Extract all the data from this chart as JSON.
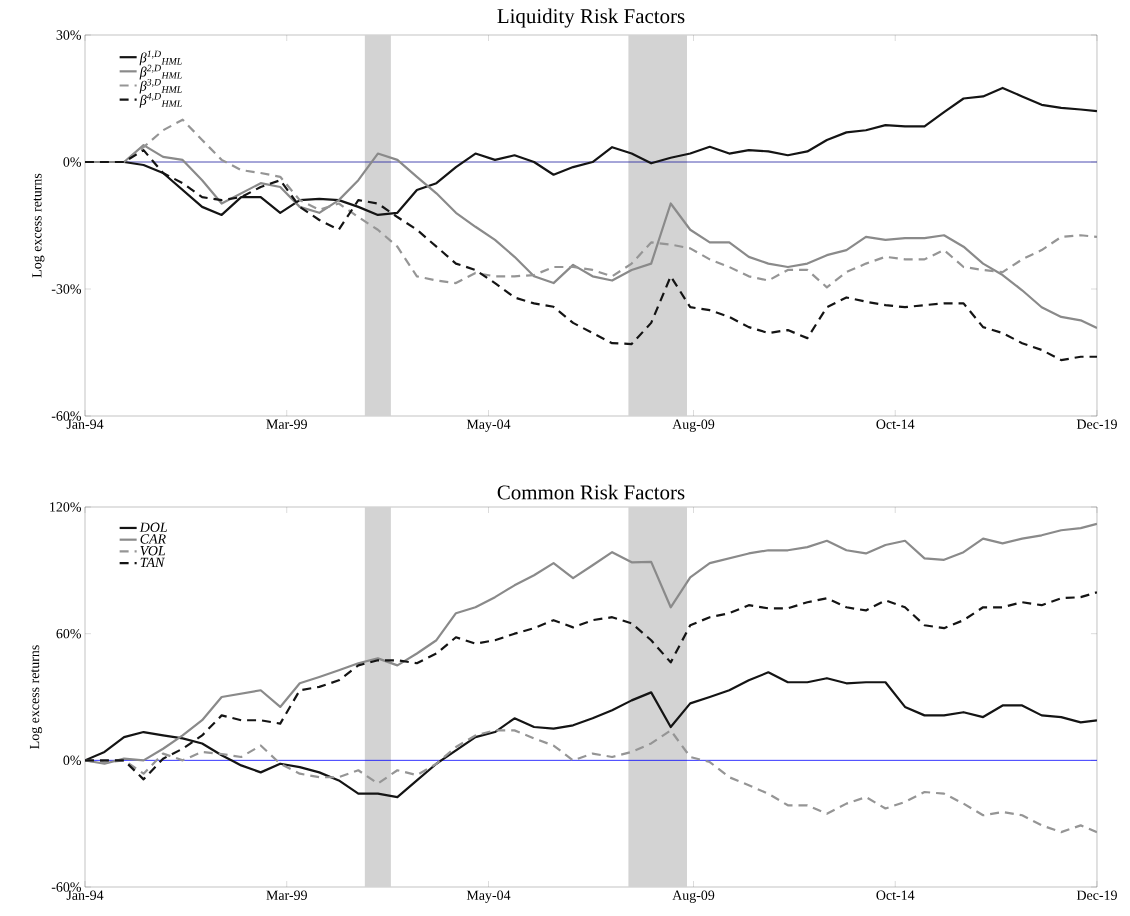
{
  "chart_data": [
    {
      "type": "line",
      "title": "Liquidity Risk Factors",
      "ylabel": "Log excess returns",
      "x": [
        "1994-01",
        "1994-07",
        "1995-01",
        "1995-07",
        "1996-01",
        "1996-07",
        "1997-01",
        "1997-07",
        "1998-01",
        "1998-07",
        "1999-01",
        "1999-07",
        "2000-01",
        "2000-07",
        "2001-01",
        "2001-07",
        "2002-01",
        "2002-07",
        "2003-01",
        "2003-07",
        "2004-01",
        "2004-07",
        "2005-01",
        "2005-07",
        "2006-01",
        "2006-07",
        "2007-01",
        "2007-07",
        "2008-01",
        "2008-07",
        "2009-01",
        "2009-07",
        "2010-01",
        "2010-07",
        "2011-01",
        "2011-07",
        "2012-01",
        "2012-07",
        "2013-01",
        "2013-07",
        "2014-01",
        "2014-07",
        "2015-01",
        "2015-07",
        "2016-01",
        "2016-07",
        "2017-01",
        "2017-07",
        "2018-01",
        "2018-07",
        "2019-01",
        "2019-07",
        "2019-12"
      ],
      "series": [
        {
          "name": "β$^{1,D}$$_{HML}$",
          "color": "#141414",
          "line_style": "solid",
          "values": [
            0,
            0,
            0,
            -0.7,
            -2.6,
            -6.6,
            -10.6,
            -12.5,
            -8.3,
            -8.3,
            -12,
            -9,
            -8.7,
            -9,
            -10.6,
            -12.5,
            -12,
            -6.6,
            -5,
            -1.2,
            2,
            0.5,
            1.6,
            0,
            -3,
            -1.2,
            0,
            3.5,
            2,
            -0.3,
            1,
            2,
            3.6,
            2,
            2.8,
            2.5,
            1.6,
            2.5,
            5.2,
            7,
            7.5,
            8.7,
            8.4,
            8.4,
            11.8,
            15,
            15.5,
            17.5,
            15.5,
            13.5,
            12.8,
            12.4,
            12
          ]
        },
        {
          "name": "β$^{2,D}$$_{HML}$",
          "color": "#8a8a8a",
          "line_style": "solid",
          "values": [
            0,
            0,
            0,
            4,
            1.2,
            0.5,
            -4.3,
            -9.8,
            -7.4,
            -5,
            -5.9,
            -10.6,
            -12,
            -9,
            -4.3,
            2,
            0.5,
            -3.5,
            -7.4,
            -12,
            -15.3,
            -18.4,
            -22.4,
            -27,
            -28.6,
            -24.3,
            -27,
            -28,
            -25.5,
            -24,
            -9.8,
            -16,
            -19,
            -19,
            -22.4,
            -24,
            -24.8,
            -24,
            -22,
            -20.8,
            -17.7,
            -18.4,
            -18,
            -18,
            -17.3,
            -20,
            -24,
            -26.7,
            -30.3,
            -34.3,
            -36.6,
            -37.4,
            -39.2
          ]
        },
        {
          "name": "β$^{3,D}$$_{HML}$",
          "color": "#959595",
          "line_style": "dashed",
          "values": [
            0,
            0,
            0,
            3.5,
            7.5,
            10,
            5.2,
            0.5,
            -1.9,
            -2.6,
            -3.5,
            -9,
            -11.3,
            -9.8,
            -13,
            -16,
            -20,
            -27,
            -28,
            -28.6,
            -26.2,
            -27,
            -27,
            -26.7,
            -24.8,
            -24.8,
            -25.5,
            -27,
            -24,
            -19,
            -19.5,
            -20.4,
            -23,
            -24.8,
            -27,
            -28,
            -25.5,
            -25.5,
            -29.6,
            -26,
            -24,
            -22.4,
            -23,
            -23,
            -20.8,
            -24.8,
            -25.5,
            -26,
            -23,
            -20.8,
            -17.7,
            -17.3,
            -17.7
          ]
        },
        {
          "name": "β$^{4,D}$$_{HML}$",
          "color": "#141414",
          "line_style": "dashed",
          "values": [
            0,
            0,
            0,
            2.8,
            -2.6,
            -5,
            -8.3,
            -9,
            -8.3,
            -5.9,
            -4.3,
            -10.6,
            -13.7,
            -16,
            -9,
            -9.8,
            -13,
            -16,
            -20,
            -24,
            -25.5,
            -28.6,
            -32,
            -33.4,
            -34.2,
            -38,
            -40.4,
            -42.8,
            -43,
            -38,
            -27,
            -34.3,
            -35,
            -36.6,
            -39,
            -40.4,
            -39.7,
            -41.6,
            -34.3,
            -32,
            -33,
            -33.8,
            -34.3,
            -33.8,
            -33.4,
            -33.4,
            -39,
            -40.4,
            -42.8,
            -44.4,
            -46.8,
            -46,
            -46
          ]
        }
      ],
      "xlim": [
        "1994-01",
        "2019-12"
      ],
      "ylim": [
        -60,
        30
      ],
      "xticks": [
        {
          "value": "1994-01",
          "label": "Jan-94"
        },
        {
          "value": "1999-03",
          "label": "Mar-99"
        },
        {
          "value": "2004-05",
          "label": "May-04"
        },
        {
          "value": "2009-08",
          "label": "Aug-09"
        },
        {
          "value": "2014-10",
          "label": "Oct-14"
        },
        {
          "value": "2019-12",
          "label": "Dec-19"
        }
      ],
      "yticks": [
        {
          "value": -60,
          "label": "-60%"
        },
        {
          "value": -30,
          "label": "-30%"
        },
        {
          "value": 0,
          "label": "0%"
        },
        {
          "value": 30,
          "label": "30%"
        }
      ],
      "legend": "top left",
      "bands": [
        {
          "axis": "x",
          "from": "2001-03",
          "to": "2001-11",
          "color": "#d3d3d3"
        },
        {
          "axis": "x",
          "from": "2007-12",
          "to": "2009-06",
          "color": "#d3d3d3"
        }
      ],
      "ref_lines": [
        {
          "axis": "y",
          "value": 0,
          "color": "#2020a0"
        }
      ]
    },
    {
      "type": "line",
      "title": "Common Risk Factors",
      "ylabel": "Log excess returns",
      "x": [
        "1994-01",
        "1994-07",
        "1995-01",
        "1995-07",
        "1996-01",
        "1996-07",
        "1997-01",
        "1997-07",
        "1998-01",
        "1998-07",
        "1999-01",
        "1999-07",
        "2000-01",
        "2000-07",
        "2001-01",
        "2001-07",
        "2002-01",
        "2002-07",
        "2003-01",
        "2003-07",
        "2004-01",
        "2004-07",
        "2005-01",
        "2005-07",
        "2006-01",
        "2006-07",
        "2007-01",
        "2007-07",
        "2008-01",
        "2008-07",
        "2009-01",
        "2009-07",
        "2010-01",
        "2010-07",
        "2011-01",
        "2011-07",
        "2012-01",
        "2012-07",
        "2013-01",
        "2013-07",
        "2014-01",
        "2014-07",
        "2015-01",
        "2015-07",
        "2016-01",
        "2016-07",
        "2017-01",
        "2017-07",
        "2018-01",
        "2018-07",
        "2019-01",
        "2019-07",
        "2019-12"
      ],
      "series": [
        {
          "name": "DOL",
          "color": "#141414",
          "line_style": "solid",
          "values": [
            0,
            4,
            11,
            13.4,
            11.8,
            10.4,
            8,
            2.4,
            -2.4,
            -5.7,
            -1.6,
            -3.2,
            -5.7,
            -9.5,
            -15.8,
            -15.8,
            -17.4,
            -9.5,
            -1.6,
            4.7,
            11,
            13.4,
            19.9,
            15.8,
            15,
            16.6,
            19.9,
            23.7,
            28.4,
            32.2,
            15.8,
            27,
            30,
            33.2,
            37.9,
            41.7,
            37,
            37,
            38.9,
            36.5,
            37,
            37,
            25.3,
            21.3,
            21.3,
            22.8,
            20.5,
            26,
            26,
            21.3,
            20.5,
            18,
            18.9
          ]
        },
        {
          "name": "CAR",
          "color": "#8a8a8a",
          "line_style": "solid",
          "values": [
            0,
            -1.6,
            0.8,
            0,
            5.5,
            11.8,
            19,
            30,
            31.6,
            33.2,
            25.3,
            36.5,
            39.5,
            42.7,
            46,
            48.3,
            45,
            50.6,
            56.9,
            69.7,
            72.5,
            77.3,
            82.9,
            87.7,
            93.4,
            86.3,
            92.4,
            98.6,
            93.8,
            94,
            72.5,
            86.7,
            93.4,
            95.7,
            98,
            99.5,
            99.5,
            101,
            104,
            99.5,
            98,
            102,
            104,
            95.7,
            95,
            98.6,
            105,
            102.8,
            105,
            106.6,
            109,
            110,
            112
          ]
        },
        {
          "name": "VOL",
          "color": "#959595",
          "line_style": "dashed",
          "values": [
            0,
            -1,
            0,
            -6.3,
            3.2,
            0,
            4,
            3,
            1.6,
            7,
            -1.6,
            -6.3,
            -8,
            -8,
            -4.7,
            -11,
            -4.7,
            -7,
            -1.6,
            6.3,
            11.8,
            14.2,
            14.2,
            10.4,
            7,
            0,
            3.2,
            1.6,
            4,
            8,
            14.2,
            1.6,
            -0.8,
            -8,
            -11.8,
            -15.8,
            -21.3,
            -21.3,
            -25.3,
            -20.5,
            -17.4,
            -22.8,
            -19.7,
            -15,
            -15.8,
            -20.5,
            -26,
            -24.5,
            -26,
            -30.8,
            -34,
            -30.8,
            -34
          ]
        },
        {
          "name": "TAN",
          "color": "#141414",
          "line_style": "dashed",
          "values": [
            0,
            0,
            0,
            -9,
            0.8,
            5.5,
            11.8,
            21.3,
            19,
            19,
            17.4,
            33.2,
            34.8,
            37.9,
            45,
            47.4,
            47.4,
            46,
            50.6,
            58.3,
            55.3,
            56.9,
            60,
            62.6,
            66.4,
            63,
            66.4,
            67.8,
            64.9,
            56.9,
            46.4,
            64,
            67.8,
            69.7,
            73.5,
            72,
            72,
            74.9,
            76.8,
            72.5,
            71,
            75.8,
            72.5,
            64,
            62.6,
            66.4,
            72.5,
            72.5,
            74.9,
            73.5,
            76.8,
            77.3,
            79.6
          ]
        }
      ],
      "xlim": [
        "1994-01",
        "2019-12"
      ],
      "ylim": [
        -60,
        120
      ],
      "xticks": [
        {
          "value": "1994-01",
          "label": "Jan-94"
        },
        {
          "value": "1999-03",
          "label": "Mar-99"
        },
        {
          "value": "2004-05",
          "label": "May-04"
        },
        {
          "value": "2009-08",
          "label": "Aug-09"
        },
        {
          "value": "2014-10",
          "label": "Oct-14"
        },
        {
          "value": "2019-12",
          "label": "Dec-19"
        }
      ],
      "yticks": [
        {
          "value": -60,
          "label": "-60%"
        },
        {
          "value": 0,
          "label": "0%"
        },
        {
          "value": 60,
          "label": "60%"
        },
        {
          "value": 120,
          "label": "120%"
        }
      ],
      "legend": "top left",
      "bands": [
        {
          "axis": "x",
          "from": "2001-03",
          "to": "2001-11",
          "color": "#d3d3d3"
        },
        {
          "axis": "x",
          "from": "2007-12",
          "to": "2009-06",
          "color": "#d3d3d3"
        }
      ],
      "ref_lines": [
        {
          "axis": "y",
          "value": 0,
          "color": "#0000ff"
        }
      ]
    }
  ]
}
